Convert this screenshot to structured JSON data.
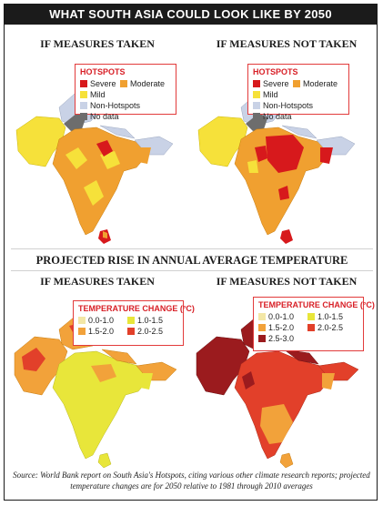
{
  "header": {
    "title": "WHAT SOUTH ASIA COULD LOOK LIKE BY 2050"
  },
  "sections": {
    "hotspots": {
      "left_title": "IF MEASURES TAKEN",
      "right_title": "IF MEASURES NOT TAKEN",
      "legend": {
        "title": "HOTSPOTS",
        "items": [
          {
            "label": "Severe",
            "color": "#d7191c"
          },
          {
            "label": "Moderate",
            "color": "#f0a030"
          },
          {
            "label": "Mild",
            "color": "#f6e13a"
          },
          {
            "label": "Non-Hotspots",
            "color": "#c9d2e6"
          },
          {
            "label": "No data",
            "color": "#6d6d6d"
          }
        ]
      }
    },
    "temperature": {
      "heading": "PROJECTED RISE IN ANNUAL AVERAGE TEMPERATURE",
      "left_title": "IF MEASURES TAKEN",
      "right_title": "IF MEASURES NOT TAKEN",
      "legend_left": {
        "title": "TEMPERATURE CHANGE (°C)",
        "items": [
          {
            "label": "0.0-1.0",
            "color": "#f3e7a6"
          },
          {
            "label": "1.0-1.5",
            "color": "#e8e63a"
          },
          {
            "label": "1.5-2.0",
            "color": "#f2a23a"
          },
          {
            "label": "2.0-2.5",
            "color": "#e2402a"
          }
        ]
      },
      "legend_right": {
        "title": "TEMPERATURE CHANGE (°C)",
        "items": [
          {
            "label": "0.0-1.0",
            "color": "#f3e7a6"
          },
          {
            "label": "1.0-1.5",
            "color": "#e8e63a"
          },
          {
            "label": "1.5-2.0",
            "color": "#f2a23a"
          },
          {
            "label": "2.0-2.5",
            "color": "#e2402a"
          },
          {
            "label": "2.5-3.0",
            "color": "#9b1b1e"
          }
        ]
      }
    }
  },
  "source": "Source: World Bank report on South Asia's Hotspots, citing various other climate research reports; projected temperature changes are for 2050 relative to 1981 through 2010 averages"
}
